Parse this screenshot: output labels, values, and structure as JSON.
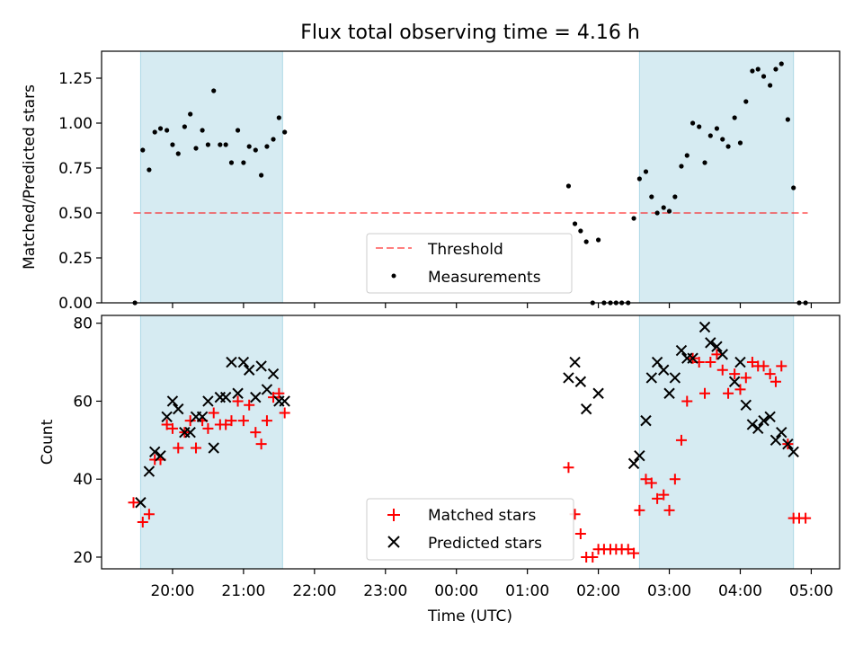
{
  "title": "Flux total observing time = 4.16 h",
  "colors": {
    "span_fill": "#add8e6",
    "threshold": "#ff0000",
    "measurements": "#000000",
    "matched": "#ff0000",
    "predicted": "#000000"
  },
  "chart_data": [
    {
      "type": "scatter",
      "ylabel": "Matched/Predicted stars",
      "xlim_hours": [
        19.0,
        29.4
      ],
      "ylim": [
        0,
        1.4
      ],
      "yticks": [
        "0.00",
        "0.25",
        "0.50",
        "0.75",
        "1.00",
        "1.25"
      ],
      "shaded_spans_hours": [
        [
          19.55,
          21.55
        ],
        [
          26.58,
          28.75
        ]
      ],
      "threshold": {
        "name": "Threshold",
        "value": 0.5,
        "x_range_hours": [
          19.45,
          28.95
        ]
      },
      "legend": {
        "position": "lower center",
        "entries": [
          "Threshold",
          "Measurements"
        ]
      },
      "series": [
        {
          "name": "Measurements",
          "marker": "dot",
          "points": [
            [
              19.47,
              0.0
            ],
            [
              19.58,
              0.85
            ],
            [
              19.67,
              0.74
            ],
            [
              19.75,
              0.95
            ],
            [
              19.83,
              0.97
            ],
            [
              19.92,
              0.96
            ],
            [
              20.0,
              0.88
            ],
            [
              20.08,
              0.83
            ],
            [
              20.17,
              0.98
            ],
            [
              20.25,
              1.05
            ],
            [
              20.33,
              0.86
            ],
            [
              20.42,
              0.96
            ],
            [
              20.5,
              0.88
            ],
            [
              20.58,
              1.18
            ],
            [
              20.67,
              0.88
            ],
            [
              20.75,
              0.88
            ],
            [
              20.83,
              0.78
            ],
            [
              20.92,
              0.96
            ],
            [
              21.0,
              0.78
            ],
            [
              21.08,
              0.87
            ],
            [
              21.17,
              0.85
            ],
            [
              21.25,
              0.71
            ],
            [
              21.33,
              0.87
            ],
            [
              21.42,
              0.91
            ],
            [
              21.5,
              1.03
            ],
            [
              21.58,
              0.95
            ],
            [
              25.58,
              0.65
            ],
            [
              25.67,
              0.44
            ],
            [
              25.75,
              0.4
            ],
            [
              25.83,
              0.34
            ],
            [
              25.92,
              0.0
            ],
            [
              26.0,
              0.35
            ],
            [
              26.08,
              0.0
            ],
            [
              26.17,
              0.0
            ],
            [
              26.25,
              0.0
            ],
            [
              26.33,
              0.0
            ],
            [
              26.42,
              0.0
            ],
            [
              26.5,
              0.47
            ],
            [
              26.58,
              0.69
            ],
            [
              26.67,
              0.73
            ],
            [
              26.75,
              0.59
            ],
            [
              26.83,
              0.5
            ],
            [
              26.92,
              0.53
            ],
            [
              27.0,
              0.51
            ],
            [
              27.08,
              0.59
            ],
            [
              27.17,
              0.76
            ],
            [
              27.25,
              0.82
            ],
            [
              27.33,
              1.0
            ],
            [
              27.42,
              0.98
            ],
            [
              27.5,
              0.78
            ],
            [
              27.58,
              0.93
            ],
            [
              27.67,
              0.97
            ],
            [
              27.75,
              0.91
            ],
            [
              27.83,
              0.87
            ],
            [
              27.92,
              1.03
            ],
            [
              28.0,
              0.89
            ],
            [
              28.08,
              1.12
            ],
            [
              28.17,
              1.29
            ],
            [
              28.25,
              1.3
            ],
            [
              28.33,
              1.26
            ],
            [
              28.42,
              1.21
            ],
            [
              28.5,
              1.3
            ],
            [
              28.58,
              1.33
            ],
            [
              28.67,
              1.02
            ],
            [
              28.75,
              0.64
            ],
            [
              28.83,
              0.0
            ],
            [
              28.92,
              0.0
            ]
          ]
        }
      ]
    },
    {
      "type": "scatter",
      "ylabel": "Count",
      "xlabel": "Time (UTC)",
      "xlim_hours": [
        19.0,
        29.4
      ],
      "ylim": [
        17,
        82
      ],
      "yticks": [
        "20",
        "40",
        "60",
        "80"
      ],
      "xticks": [
        {
          "hour": 20,
          "label": "20:00"
        },
        {
          "hour": 21,
          "label": "21:00"
        },
        {
          "hour": 22,
          "label": "22:00"
        },
        {
          "hour": 23,
          "label": "23:00"
        },
        {
          "hour": 24,
          "label": "00:00"
        },
        {
          "hour": 25,
          "label": "01:00"
        },
        {
          "hour": 26,
          "label": "02:00"
        },
        {
          "hour": 27,
          "label": "03:00"
        },
        {
          "hour": 28,
          "label": "04:00"
        },
        {
          "hour": 29,
          "label": "05:00"
        }
      ],
      "shaded_spans_hours": [
        [
          19.55,
          21.55
        ],
        [
          26.58,
          28.75
        ]
      ],
      "legend": {
        "position": "lower center",
        "entries": [
          "Matched stars",
          "Predicted stars"
        ]
      },
      "series": [
        {
          "name": "Matched stars",
          "marker": "plus",
          "points": [
            [
              19.45,
              34
            ],
            [
              19.58,
              29
            ],
            [
              19.67,
              31
            ],
            [
              19.75,
              45
            ],
            [
              19.83,
              45
            ],
            [
              19.92,
              54
            ],
            [
              20.0,
              53
            ],
            [
              20.08,
              48
            ],
            [
              20.17,
              52
            ],
            [
              20.25,
              55
            ],
            [
              20.33,
              48
            ],
            [
              20.42,
              55
            ],
            [
              20.5,
              53
            ],
            [
              20.58,
              57
            ],
            [
              20.67,
              54
            ],
            [
              20.75,
              54
            ],
            [
              20.83,
              55
            ],
            [
              20.92,
              60
            ],
            [
              21.0,
              55
            ],
            [
              21.08,
              59
            ],
            [
              21.17,
              52
            ],
            [
              21.25,
              49
            ],
            [
              21.33,
              55
            ],
            [
              21.42,
              61
            ],
            [
              21.5,
              62
            ],
            [
              21.58,
              57
            ],
            [
              25.58,
              43
            ],
            [
              25.67,
              31
            ],
            [
              25.75,
              26
            ],
            [
              25.83,
              20
            ],
            [
              25.92,
              20
            ],
            [
              26.0,
              22
            ],
            [
              26.08,
              22
            ],
            [
              26.17,
              22
            ],
            [
              26.25,
              22
            ],
            [
              26.33,
              22
            ],
            [
              26.42,
              22
            ],
            [
              26.5,
              21
            ],
            [
              26.58,
              32
            ],
            [
              26.67,
              40
            ],
            [
              26.75,
              39
            ],
            [
              26.83,
              35
            ],
            [
              26.92,
              36
            ],
            [
              27.0,
              32
            ],
            [
              27.08,
              40
            ],
            [
              27.17,
              50
            ],
            [
              27.25,
              60
            ],
            [
              27.33,
              71
            ],
            [
              27.42,
              70
            ],
            [
              27.5,
              62
            ],
            [
              27.58,
              70
            ],
            [
              27.67,
              72
            ],
            [
              27.75,
              68
            ],
            [
              27.83,
              62
            ],
            [
              27.92,
              67
            ],
            [
              28.0,
              63
            ],
            [
              28.08,
              66
            ],
            [
              28.17,
              70
            ],
            [
              28.25,
              69
            ],
            [
              28.33,
              69
            ],
            [
              28.42,
              67
            ],
            [
              28.5,
              65
            ],
            [
              28.58,
              69
            ],
            [
              28.67,
              49
            ],
            [
              28.75,
              30
            ],
            [
              28.83,
              30
            ],
            [
              28.92,
              30
            ]
          ]
        },
        {
          "name": "Predicted stars",
          "marker": "x",
          "points": [
            [
              19.55,
              34
            ],
            [
              19.67,
              42
            ],
            [
              19.75,
              47
            ],
            [
              19.83,
              46
            ],
            [
              19.92,
              56
            ],
            [
              20.0,
              60
            ],
            [
              20.08,
              58
            ],
            [
              20.17,
              52
            ],
            [
              20.25,
              52
            ],
            [
              20.33,
              56
            ],
            [
              20.42,
              56
            ],
            [
              20.5,
              60
            ],
            [
              20.58,
              48
            ],
            [
              20.67,
              61
            ],
            [
              20.75,
              61
            ],
            [
              20.83,
              70
            ],
            [
              20.92,
              62
            ],
            [
              21.0,
              70
            ],
            [
              21.08,
              68
            ],
            [
              21.17,
              61
            ],
            [
              21.25,
              69
            ],
            [
              21.33,
              63
            ],
            [
              21.42,
              67
            ],
            [
              21.5,
              60
            ],
            [
              21.58,
              60
            ],
            [
              25.58,
              66
            ],
            [
              25.67,
              70
            ],
            [
              25.75,
              65
            ],
            [
              25.83,
              58
            ],
            [
              26.0,
              62
            ],
            [
              26.5,
              44
            ],
            [
              26.58,
              46
            ],
            [
              26.67,
              55
            ],
            [
              26.75,
              66
            ],
            [
              26.83,
              70
            ],
            [
              26.92,
              68
            ],
            [
              27.0,
              62
            ],
            [
              27.08,
              66
            ],
            [
              27.17,
              73
            ],
            [
              27.25,
              71
            ],
            [
              27.33,
              71
            ],
            [
              27.5,
              79
            ],
            [
              27.58,
              75
            ],
            [
              27.67,
              74
            ],
            [
              27.75,
              72
            ],
            [
              27.92,
              65
            ],
            [
              28.0,
              70
            ],
            [
              28.08,
              59
            ],
            [
              28.17,
              54
            ],
            [
              28.25,
              53
            ],
            [
              28.33,
              55
            ],
            [
              28.42,
              56
            ],
            [
              28.5,
              50
            ],
            [
              28.58,
              52
            ],
            [
              28.67,
              49
            ],
            [
              28.75,
              47
            ]
          ]
        }
      ]
    }
  ]
}
